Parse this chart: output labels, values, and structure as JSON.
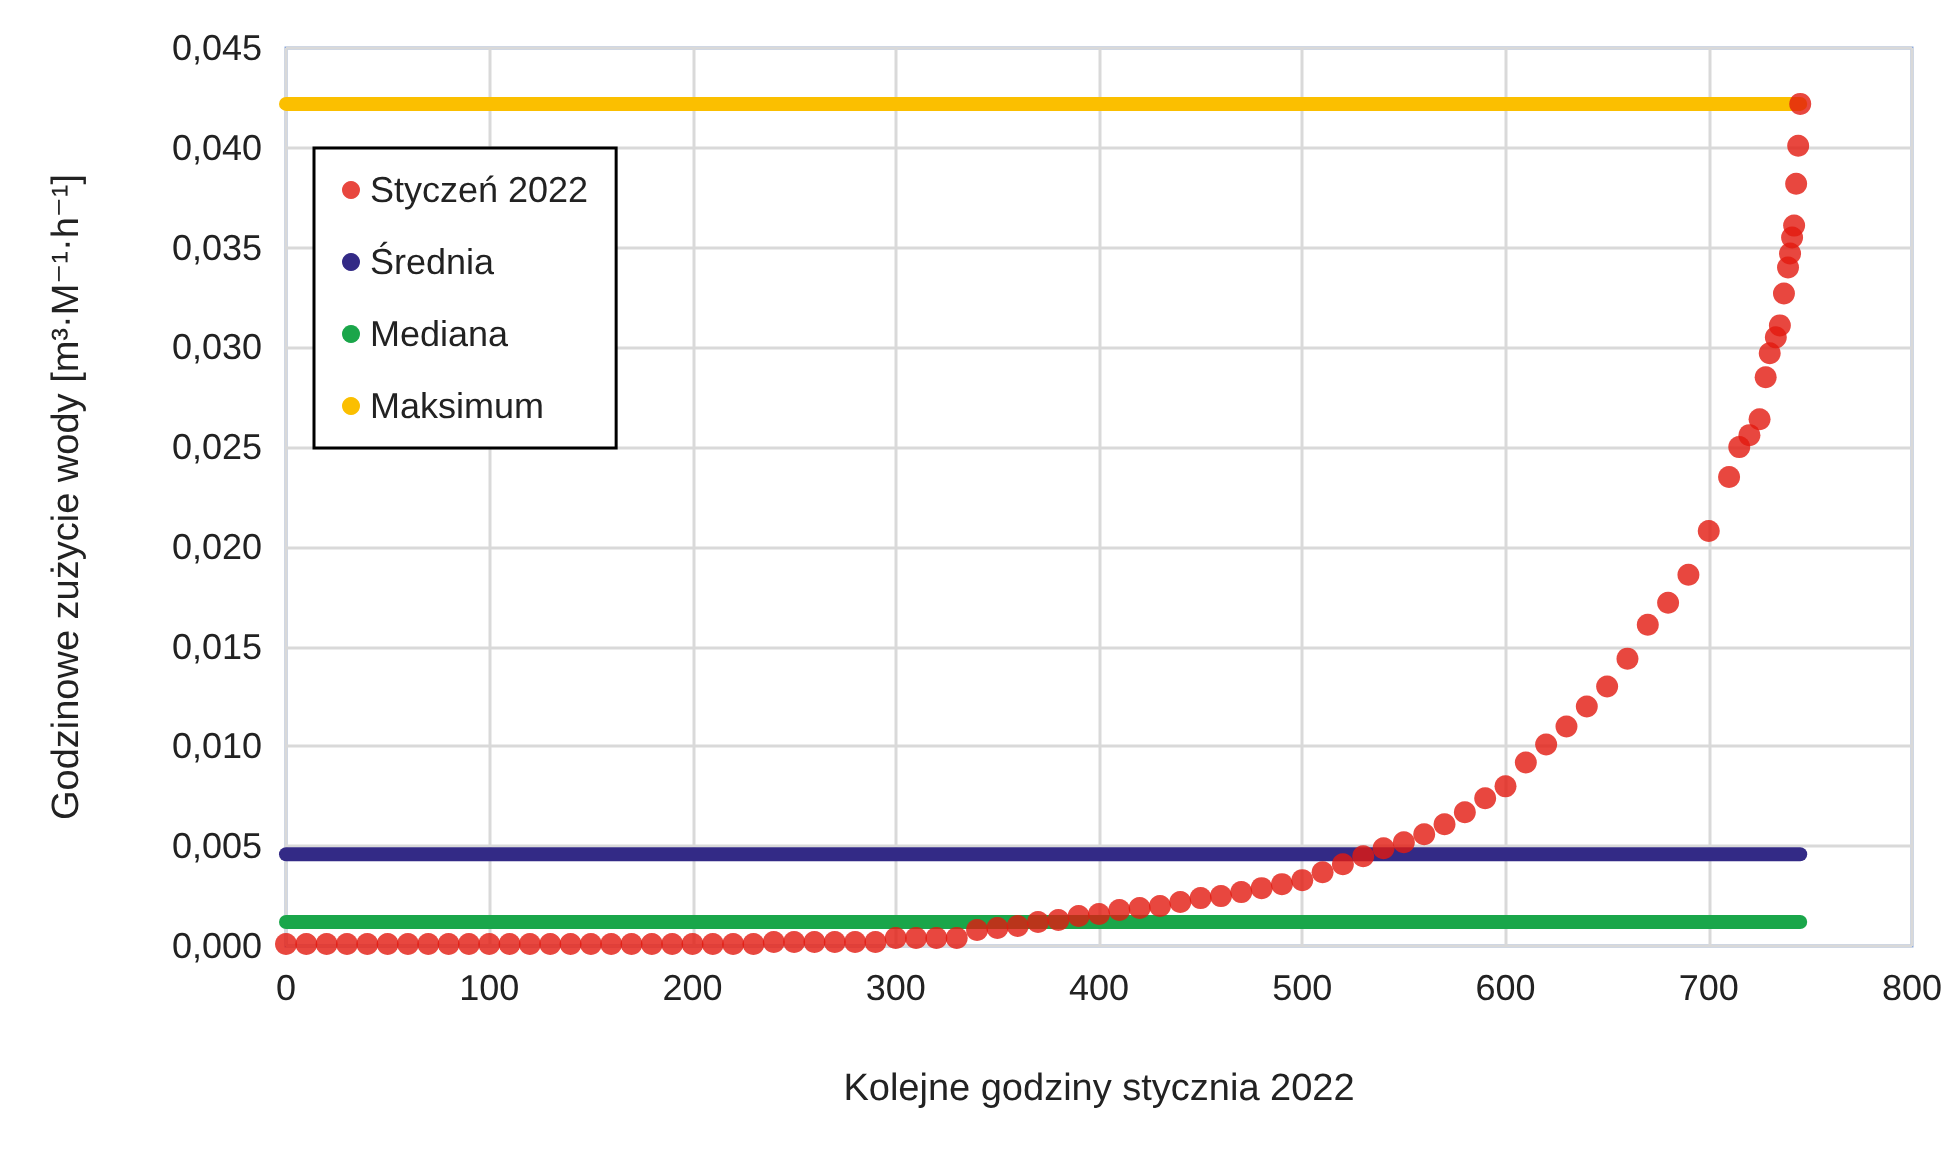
{
  "chart_data": {
    "type": "scatter",
    "xlabel": "Kolejne godziny stycznia 2022",
    "ylabel": "Godzinowe zużycie wody [m³·M⁻¹·h⁻¹]",
    "xlim": [
      0,
      800
    ],
    "xticks": [
      0,
      100,
      200,
      300,
      400,
      500,
      600,
      700,
      800
    ],
    "ylim": [
      0,
      0.045
    ],
    "yticks": [
      {
        "value": 0,
        "label": "0,000"
      },
      {
        "value": 0.005,
        "label": "0,005"
      },
      {
        "value": 0.01,
        "label": "0,010"
      },
      {
        "value": 0.015,
        "label": "0,015"
      },
      {
        "value": 0.02,
        "label": "0,020"
      },
      {
        "value": 0.025,
        "label": "0,025"
      },
      {
        "value": 0.03,
        "label": "0,030"
      },
      {
        "value": 0.035,
        "label": "0,035"
      },
      {
        "value": 0.04,
        "label": "0,040"
      },
      {
        "value": 0.045,
        "label": "0,045"
      }
    ],
    "grid": true,
    "legend": "top left",
    "marker": "circle",
    "series": [
      {
        "name": "Styczeń 2022",
        "color": "#e2190f",
        "x": [
          0,
          10,
          20,
          30,
          40,
          50,
          60,
          70,
          80,
          90,
          100,
          110,
          120,
          130,
          140,
          150,
          160,
          170,
          180,
          190,
          200,
          210,
          220,
          230,
          240,
          250,
          260,
          270,
          280,
          290,
          300,
          310,
          320,
          330,
          340,
          350,
          360,
          370,
          380,
          390,
          400,
          410,
          420,
          430,
          440,
          450,
          460,
          470,
          480,
          490,
          500,
          510,
          520,
          530,
          540,
          550,
          560,
          570,
          580,
          590,
          600,
          610,
          620,
          630,
          640,
          650,
          660,
          670,
          680,
          690,
          700,
          710,
          715,
          720,
          725,
          728,
          730,
          733,
          735,
          737,
          739,
          740,
          741,
          742,
          743,
          744,
          745
        ],
        "values": [
          0.0001,
          0.0001,
          0.0001,
          0.0001,
          0.0001,
          0.0001,
          0.0001,
          0.0001,
          0.0001,
          0.0001,
          0.0001,
          0.0001,
          0.0001,
          0.0001,
          0.0001,
          0.0001,
          0.0001,
          0.0001,
          0.0001,
          0.0001,
          0.0001,
          0.0001,
          0.0001,
          0.0001,
          0.0002,
          0.0002,
          0.0002,
          0.0002,
          0.0002,
          0.0002,
          0.0004,
          0.0004,
          0.0004,
          0.0004,
          0.0008,
          0.0009,
          0.001,
          0.0012,
          0.0013,
          0.0015,
          0.0016,
          0.0018,
          0.0019,
          0.002,
          0.0022,
          0.0024,
          0.0025,
          0.0027,
          0.0029,
          0.0031,
          0.0033,
          0.0037,
          0.0041,
          0.0045,
          0.0049,
          0.0052,
          0.0056,
          0.0061,
          0.0067,
          0.0074,
          0.008,
          0.0092,
          0.0101,
          0.011,
          0.012,
          0.013,
          0.0144,
          0.0161,
          0.0172,
          0.0186,
          0.0208,
          0.0235,
          0.025,
          0.0256,
          0.0264,
          0.0285,
          0.0297,
          0.0305,
          0.0311,
          0.0327,
          0.034,
          0.0347,
          0.0355,
          0.0361,
          0.0382,
          0.0401,
          0.0422
        ]
      },
      {
        "name": "Średnia",
        "color": "#332a86",
        "type": "line",
        "marker": "none",
        "x": [
          0,
          745
        ],
        "values": [
          0.0046,
          0.0046
        ]
      },
      {
        "name": "Mediana",
        "color": "#1aa64a",
        "type": "line",
        "marker": "none",
        "x": [
          0,
          745
        ],
        "values": [
          0.0012,
          0.0012
        ]
      },
      {
        "name": "Maksimum",
        "color": "#fbbf00",
        "type": "line",
        "marker": "none",
        "x": [
          0,
          745
        ],
        "values": [
          0.0422,
          0.0422
        ]
      }
    ]
  }
}
